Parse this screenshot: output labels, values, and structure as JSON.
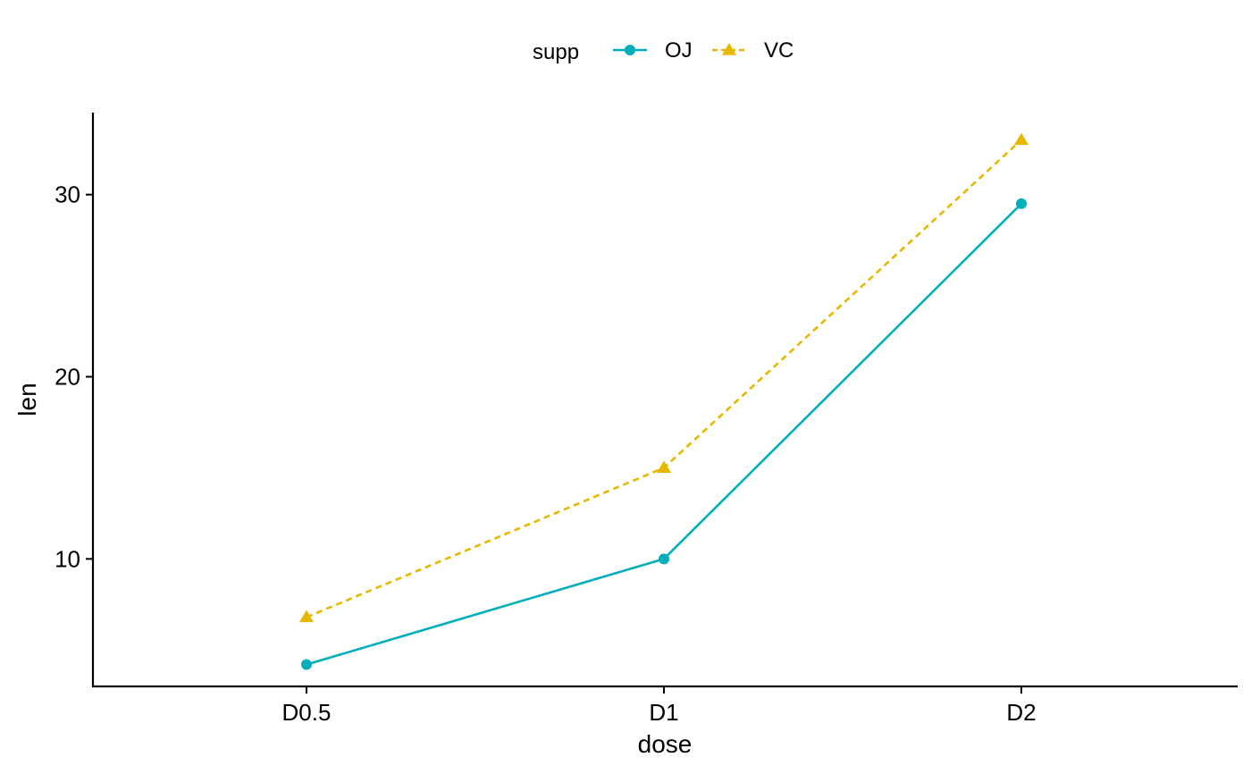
{
  "chart_data": {
    "type": "line",
    "title": "",
    "xlabel": "dose",
    "ylabel": "len",
    "categories": [
      "D0.5",
      "D1",
      "D2"
    ],
    "ylim": [
      3,
      34.5
    ],
    "yticks": [
      10,
      20,
      30
    ],
    "grid": false,
    "legend": {
      "title": "supp",
      "position": "top"
    },
    "series": [
      {
        "name": "OJ",
        "values": [
          4.2,
          10.0,
          29.5
        ],
        "color": "#00AFBB",
        "marker": "circle",
        "line": "solid"
      },
      {
        "name": "VC",
        "values": [
          6.8,
          15.0,
          33.0
        ],
        "color": "#E7B800",
        "marker": "triangle",
        "line": "dashed"
      }
    ]
  }
}
